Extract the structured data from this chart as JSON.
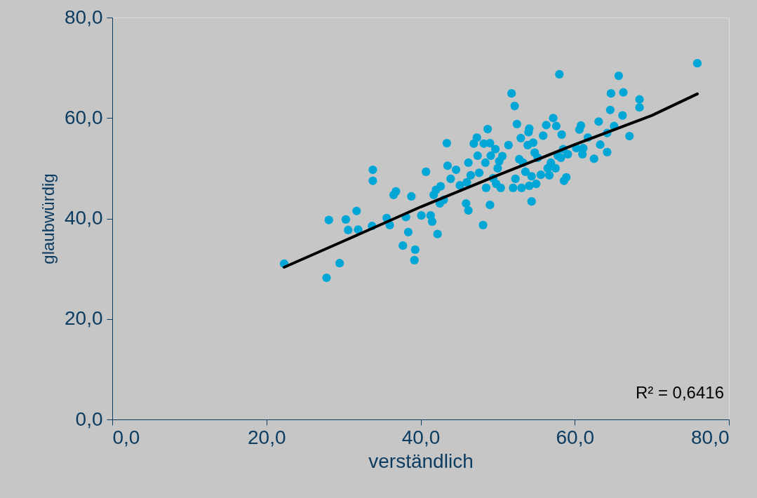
{
  "chart_data": {
    "type": "scatter",
    "xlabel": "verständlich",
    "ylabel": "glaubwürdig",
    "xlim": [
      0,
      80
    ],
    "ylim": [
      0,
      80
    ],
    "xticks": [
      {
        "value": 0,
        "label": "0,0"
      },
      {
        "value": 20,
        "label": "20,0"
      },
      {
        "value": 40,
        "label": "40,0"
      },
      {
        "value": 60,
        "label": "60,0"
      },
      {
        "value": 80,
        "label": "80,0"
      }
    ],
    "yticks": [
      {
        "value": 0,
        "label": "0,0"
      },
      {
        "value": 20,
        "label": "20,0"
      },
      {
        "value": 40,
        "label": "40,0"
      },
      {
        "value": 60,
        "label": "60,0"
      },
      {
        "value": 80,
        "label": "80,0"
      }
    ],
    "grid": false,
    "marker": "circle",
    "annotations": [
      "R² = 0,6416"
    ],
    "series": [
      {
        "color": "#00a6d6",
        "x": [
          22.3,
          27.8,
          28.1,
          29.5,
          30.3,
          30.6,
          31.7,
          31.9,
          33.8,
          33.8,
          33.7,
          35.6,
          36.0,
          36.5,
          36.8,
          37.7,
          38.1,
          38.4,
          38.8,
          39.2,
          39.3,
          40.1,
          40.7,
          41.3,
          41.5,
          41.7,
          42.0,
          42.2,
          42.5,
          42.6,
          43.0,
          43.4,
          43.5,
          43.9,
          44.6,
          45.1,
          45.9,
          46.0,
          46.2,
          46.2,
          46.5,
          46.9,
          47.3,
          47.4,
          47.6,
          48.1,
          48.2,
          48.4,
          48.5,
          48.7,
          49.0,
          49.0,
          49.1,
          49.4,
          49.7,
          49.8,
          50.0,
          50.2,
          50.4,
          50.6,
          51.4,
          51.8,
          52.0,
          52.2,
          52.3,
          52.5,
          52.8,
          53.0,
          53.1,
          53.3,
          53.6,
          53.9,
          54.0,
          54.1,
          54.1,
          54.4,
          54.4,
          54.6,
          54.8,
          55.0,
          55.2,
          55.6,
          55.9,
          56.3,
          56.5,
          56.7,
          56.9,
          57.2,
          57.5,
          57.6,
          57.8,
          58.0,
          58.2,
          58.3,
          58.5,
          58.6,
          58.9,
          59.1,
          60.2,
          60.6,
          60.8,
          61.0,
          61.1,
          61.7,
          62.5,
          63.1,
          63.3,
          64.2,
          64.2,
          64.6,
          64.7,
          65.1,
          65.7,
          66.2,
          66.3,
          67.1,
          68.4,
          68.4,
          75.9
        ],
        "values": [
          31.0,
          28.2,
          39.7,
          31.1,
          39.8,
          37.7,
          41.5,
          37.8,
          49.7,
          47.5,
          38.5,
          40.1,
          38.7,
          44.7,
          45.4,
          34.6,
          40.3,
          37.3,
          44.4,
          31.7,
          33.8,
          40.6,
          49.3,
          40.6,
          39.4,
          44.7,
          45.7,
          36.9,
          43.0,
          46.4,
          43.7,
          55.0,
          50.5,
          47.9,
          49.7,
          46.6,
          43.0,
          47.2,
          41.6,
          51.1,
          48.6,
          54.9,
          56.1,
          52.5,
          49.1,
          38.7,
          54.9,
          51.1,
          46.1,
          57.8,
          55.0,
          42.7,
          52.5,
          48.0,
          53.8,
          46.9,
          50.0,
          51.4,
          46.1,
          52.4,
          54.6,
          64.9,
          46.1,
          62.4,
          47.9,
          58.8,
          51.8,
          56.0,
          46.1,
          51.1,
          49.3,
          54.6,
          57.2,
          57.9,
          46.5,
          48.4,
          43.4,
          55.1,
          53.1,
          46.9,
          52.1,
          48.7,
          56.5,
          58.6,
          50.0,
          48.6,
          51.1,
          60.0,
          50.0,
          58.4,
          52.5,
          68.7,
          52.1,
          56.7,
          53.8,
          47.5,
          48.2,
          52.8,
          54.0,
          57.7,
          58.5,
          52.8,
          54.0,
          56.1,
          51.9,
          59.3,
          54.7,
          53.2,
          57.0,
          61.6,
          64.9,
          58.4,
          68.4,
          60.5,
          65.1,
          56.4,
          63.7,
          62.1,
          70.9
        ]
      },
      {
        "type": "line",
        "marker": "none",
        "color": "#000000",
        "x": [
          22.3,
          30,
          40,
          50,
          60,
          70,
          75.9
        ],
        "values": [
          30.3,
          35.5,
          42.3,
          48.6,
          54.7,
          60.5,
          64.8
        ]
      }
    ]
  }
}
